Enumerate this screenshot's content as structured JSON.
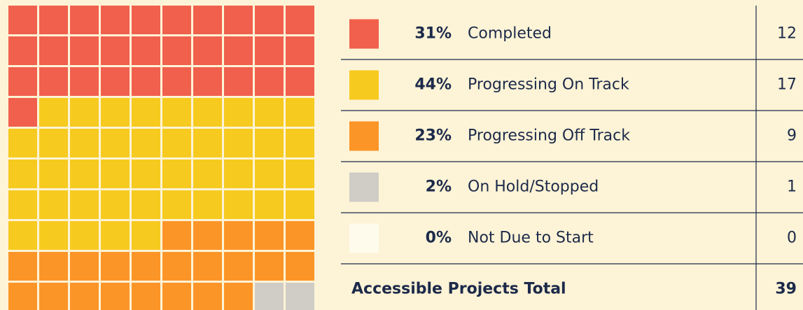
{
  "chart_data": {
    "type": "waffle",
    "grid_size": 10,
    "series": [
      {
        "name": "Completed",
        "color": "#f0604d",
        "values": 31,
        "value_labels": "31%",
        "count": 12
      },
      {
        "name": "Progressing On Track",
        "color": "#f6ca1f",
        "values": 44,
        "value_labels": "44%",
        "count": 17
      },
      {
        "name": "Progressing Off Track",
        "color": "#fc9528",
        "values": 23,
        "value_labels": "23%",
        "count": 9
      },
      {
        "name": "On Hold/Stopped",
        "color": "#d0ccc6",
        "values": 2,
        "value_labels": "2%",
        "count": 1
      },
      {
        "name": "Not Due to Start",
        "color": "#fffbec",
        "values": 0,
        "value_labels": "0%",
        "count": 0
      }
    ],
    "total_label": "Accessible Projects Total",
    "total": 39
  }
}
